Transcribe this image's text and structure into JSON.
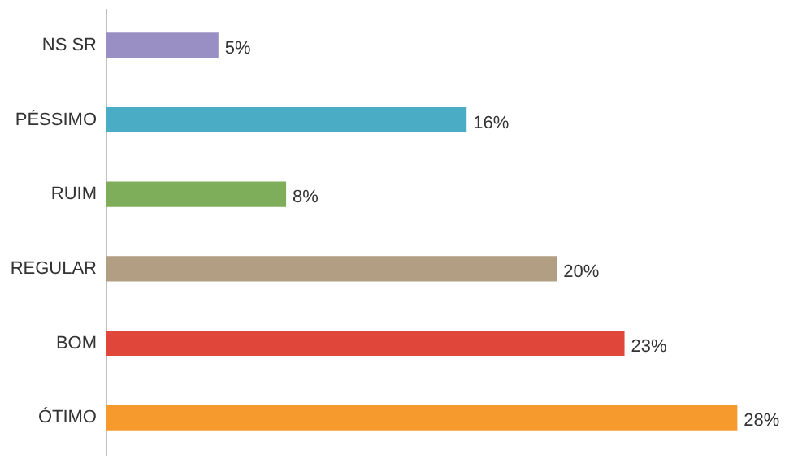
{
  "chart_data": {
    "type": "bar",
    "orientation": "horizontal",
    "categories": [
      "NS SR",
      "PÉSSIMO",
      "RUIM",
      "REGULAR",
      "BOM",
      "ÓTIMO"
    ],
    "values": [
      5,
      16,
      8,
      20,
      23,
      28
    ],
    "colors": [
      "#9a8fc4",
      "#4bacc6",
      "#7fae5a",
      "#b29e82",
      "#e0463a",
      "#f79a2e"
    ],
    "value_labels": [
      "5%",
      "16%",
      "8%",
      "20%",
      "23%",
      "28%"
    ]
  }
}
